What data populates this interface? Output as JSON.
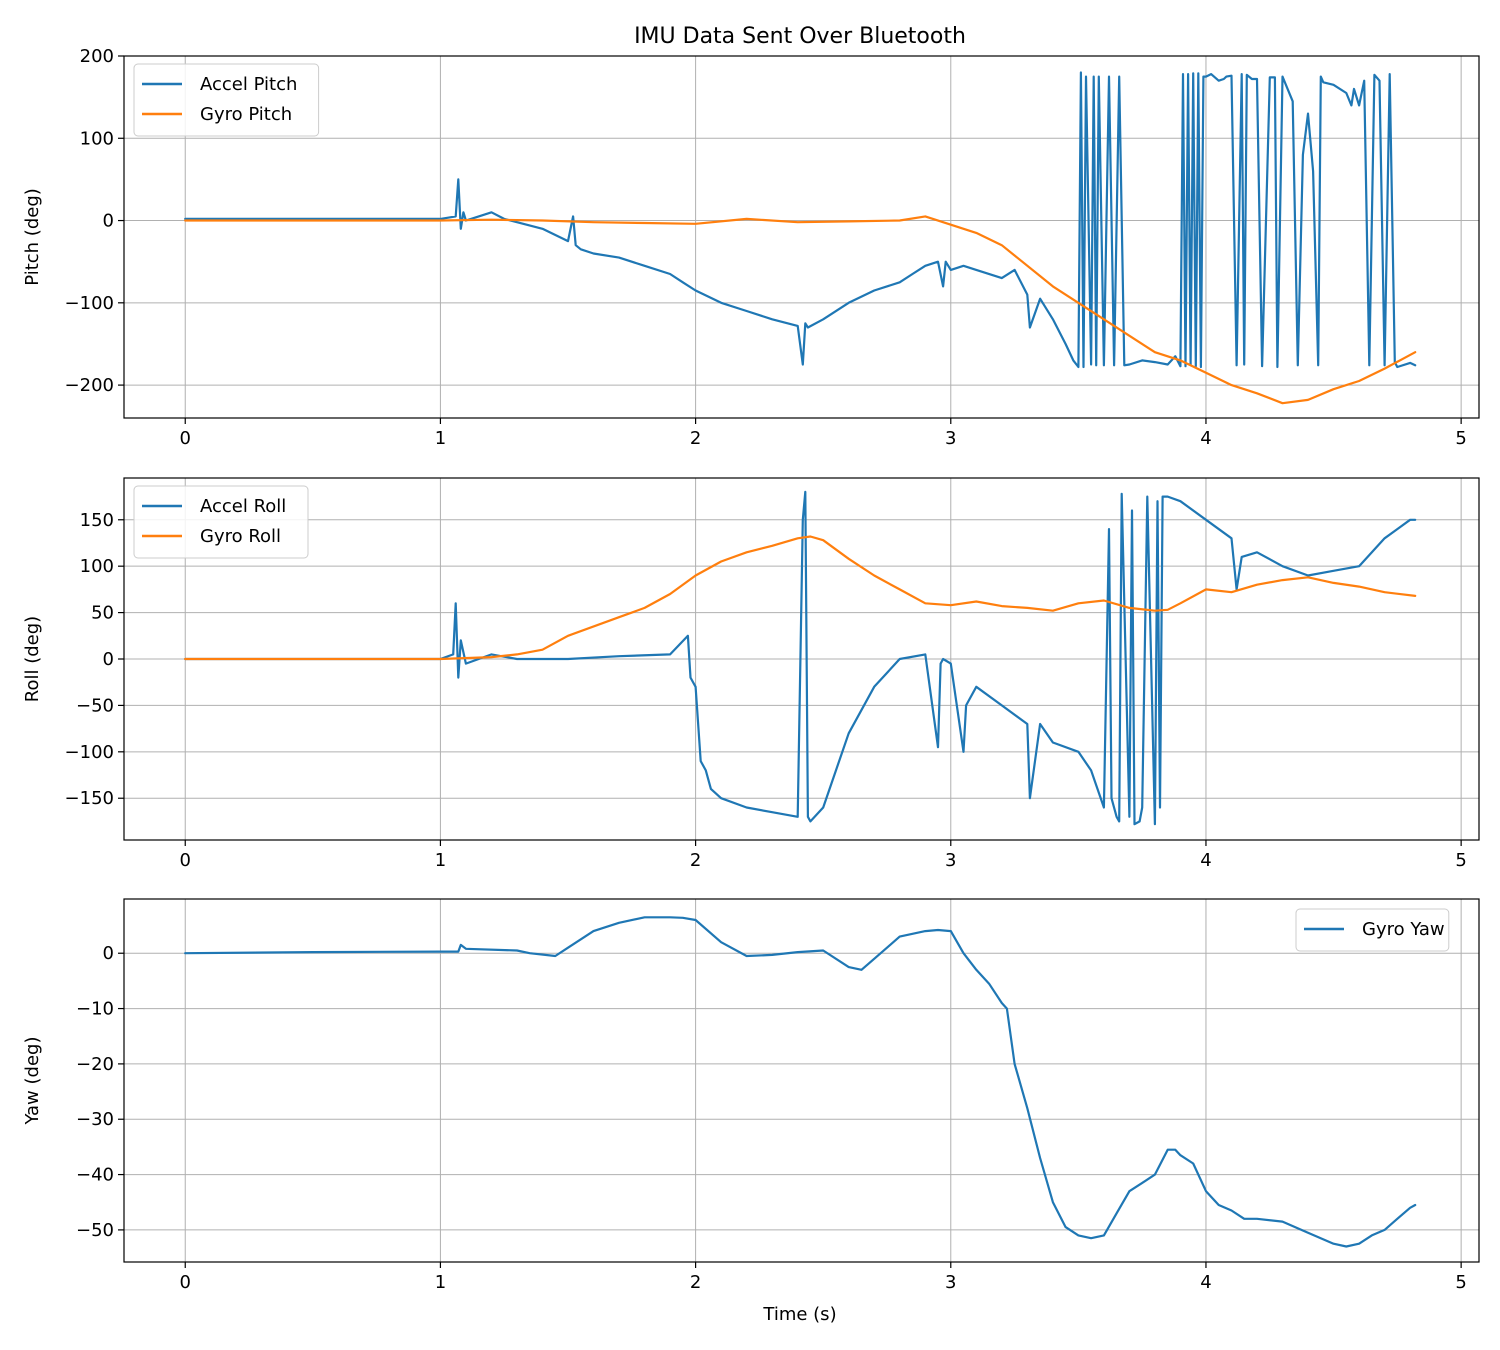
{
  "figure": {
    "title": "IMU Data Sent Over Bluetooth",
    "xlabel": "Time (s)"
  },
  "colors": {
    "accel": "#1f77b4",
    "gyro": "#ff7f0e",
    "grid": "#b0b0b0"
  },
  "chart_data": [
    {
      "type": "line",
      "title": "IMU Data Sent Over Bluetooth",
      "xlabel": "",
      "ylabel": "Pitch (deg)",
      "xlim": [
        -0.24,
        5.07
      ],
      "ylim": [
        -240,
        200
      ],
      "xticks": [
        0,
        1,
        2,
        3,
        4,
        5
      ],
      "xtick_labels": [
        "0",
        "1",
        "2",
        "3",
        "4",
        "5"
      ],
      "yticks": [
        200,
        100,
        0,
        -100,
        -200
      ],
      "ytick_labels": [
        "200",
        "100",
        "0",
        "−100",
        "−200"
      ],
      "legend": "top-left",
      "grid": true,
      "series": [
        {
          "name": "Accel Pitch",
          "color": "#1f77b4",
          "x": [
            0,
            0.3,
            0.6,
            0.9,
            1.0,
            1.06,
            1.07,
            1.08,
            1.09,
            1.1,
            1.15,
            1.2,
            1.25,
            1.3,
            1.4,
            1.5,
            1.52,
            1.53,
            1.55,
            1.6,
            1.7,
            1.8,
            1.9,
            1.95,
            2.0,
            2.1,
            2.2,
            2.3,
            2.4,
            2.42,
            2.43,
            2.44,
            2.5,
            2.6,
            2.7,
            2.8,
            2.85,
            2.9,
            2.95,
            2.97,
            2.98,
            3.0,
            3.05,
            3.1,
            3.2,
            3.25,
            3.3,
            3.31,
            3.35,
            3.4,
            3.45,
            3.48,
            3.5,
            3.51,
            3.52,
            3.53,
            3.55,
            3.56,
            3.57,
            3.58,
            3.6,
            3.62,
            3.64,
            3.66,
            3.68,
            3.7,
            3.75,
            3.8,
            3.85,
            3.88,
            3.9,
            3.91,
            3.92,
            3.93,
            3.94,
            3.95,
            3.96,
            3.97,
            3.98,
            3.99,
            4.0,
            4.02,
            4.05,
            4.07,
            4.08,
            4.1,
            4.12,
            4.14,
            4.15,
            4.16,
            4.18,
            4.2,
            4.22,
            4.25,
            4.27,
            4.28,
            4.3,
            4.32,
            4.34,
            4.36,
            4.38,
            4.4,
            4.42,
            4.44,
            4.45,
            4.46,
            4.5,
            4.55,
            4.57,
            4.58,
            4.6,
            4.62,
            4.64,
            4.66,
            4.68,
            4.7,
            4.72,
            4.74,
            4.75,
            4.8,
            4.82
          ],
          "y": [
            2,
            2,
            2,
            2,
            2,
            5,
            50,
            -10,
            10,
            0,
            5,
            10,
            2,
            -2,
            -10,
            -25,
            5,
            -30,
            -35,
            -40,
            -45,
            -55,
            -65,
            -75,
            -85,
            -100,
            -110,
            -120,
            -128,
            -175,
            -125,
            -130,
            -120,
            -100,
            -85,
            -75,
            -65,
            -55,
            -50,
            -80,
            -50,
            -60,
            -55,
            -60,
            -70,
            -60,
            -90,
            -130,
            -95,
            -120,
            -150,
            -170,
            -178,
            180,
            -178,
            175,
            -175,
            175,
            -176,
            175,
            -176,
            175,
            -176,
            175,
            -176,
            -175,
            -170,
            -172,
            -175,
            -165,
            -177,
            178,
            -177,
            178,
            -175,
            179,
            -177,
            179,
            -178,
            175,
            175,
            178,
            170,
            172,
            175,
            176,
            -176,
            178,
            -175,
            177,
            172,
            172,
            -177,
            174,
            174,
            -178,
            175,
            160,
            145,
            -176,
            80,
            130,
            60,
            -176,
            175,
            168,
            165,
            155,
            140,
            160,
            140,
            170,
            -176,
            177,
            170,
            -176,
            178,
            -172,
            -178,
            -173,
            -176
          ]
        },
        {
          "name": "Gyro Pitch",
          "color": "#ff7f0e",
          "x": [
            0,
            0.5,
            1.0,
            1.2,
            1.4,
            1.6,
            1.8,
            2.0,
            2.2,
            2.4,
            2.6,
            2.8,
            2.9,
            3.0,
            3.1,
            3.2,
            3.4,
            3.6,
            3.8,
            3.9,
            4.0,
            4.1,
            4.2,
            4.3,
            4.4,
            4.5,
            4.6,
            4.7,
            4.82
          ],
          "y": [
            0,
            0,
            0,
            1,
            0,
            -2,
            -3,
            -4,
            2,
            -2,
            -1,
            0,
            5,
            -5,
            -15,
            -30,
            -80,
            -120,
            -160,
            -170,
            -185,
            -200,
            -210,
            -222,
            -218,
            -205,
            -195,
            -180,
            -160
          ]
        }
      ]
    },
    {
      "type": "line",
      "title": "",
      "xlabel": "",
      "ylabel": "Roll (deg)",
      "xlim": [
        -0.24,
        5.07
      ],
      "ylim": [
        -195,
        195
      ],
      "xticks": [
        0,
        1,
        2,
        3,
        4,
        5
      ],
      "xtick_labels": [
        "0",
        "1",
        "2",
        "3",
        "4",
        "5"
      ],
      "yticks": [
        150,
        100,
        50,
        0,
        -50,
        -100,
        -150
      ],
      "ytick_labels": [
        "150",
        "100",
        "50",
        "0",
        "−50",
        "−100",
        "−150"
      ],
      "legend": "top-left",
      "grid": true,
      "series": [
        {
          "name": "Accel Roll",
          "color": "#1f77b4",
          "x": [
            0,
            0.5,
            1.0,
            1.05,
            1.06,
            1.07,
            1.08,
            1.1,
            1.2,
            1.3,
            1.5,
            1.7,
            1.9,
            1.97,
            1.98,
            2.0,
            2.02,
            2.04,
            2.06,
            2.1,
            2.2,
            2.3,
            2.4,
            2.42,
            2.43,
            2.44,
            2.45,
            2.5,
            2.6,
            2.7,
            2.8,
            2.9,
            2.95,
            2.96,
            2.97,
            3.0,
            3.05,
            3.06,
            3.1,
            3.2,
            3.3,
            3.31,
            3.35,
            3.4,
            3.5,
            3.55,
            3.6,
            3.62,
            3.63,
            3.65,
            3.66,
            3.67,
            3.7,
            3.71,
            3.72,
            3.74,
            3.75,
            3.77,
            3.8,
            3.81,
            3.82,
            3.83,
            3.85,
            3.9,
            4.0,
            4.1,
            4.12,
            4.14,
            4.2,
            4.3,
            4.4,
            4.5,
            4.6,
            4.7,
            4.75,
            4.8,
            4.82
          ],
          "y": [
            0,
            0,
            0,
            5,
            60,
            -20,
            20,
            -5,
            5,
            0,
            0,
            3,
            5,
            25,
            -20,
            -30,
            -110,
            -120,
            -140,
            -150,
            -160,
            -165,
            -170,
            150,
            180,
            -170,
            -175,
            -160,
            -80,
            -30,
            0,
            5,
            -95,
            -5,
            0,
            -5,
            -100,
            -50,
            -30,
            -50,
            -70,
            -150,
            -70,
            -90,
            -100,
            -120,
            -160,
            140,
            -150,
            -170,
            -175,
            178,
            -170,
            160,
            -178,
            -175,
            -160,
            175,
            -178,
            170,
            -160,
            175,
            175,
            170,
            150,
            130,
            75,
            110,
            115,
            100,
            90,
            95,
            100,
            130,
            140,
            150,
            150
          ]
        },
        {
          "name": "Gyro Roll",
          "color": "#ff7f0e",
          "x": [
            0,
            0.5,
            1.0,
            1.2,
            1.3,
            1.4,
            1.5,
            1.7,
            1.8,
            1.9,
            2.0,
            2.1,
            2.2,
            2.3,
            2.4,
            2.45,
            2.5,
            2.6,
            2.7,
            2.8,
            2.9,
            3.0,
            3.1,
            3.2,
            3.3,
            3.4,
            3.5,
            3.6,
            3.7,
            3.8,
            3.85,
            3.9,
            4.0,
            4.1,
            4.2,
            4.3,
            4.4,
            4.5,
            4.6,
            4.7,
            4.82
          ],
          "y": [
            0,
            0,
            0,
            2,
            5,
            10,
            25,
            45,
            55,
            70,
            90,
            105,
            115,
            122,
            130,
            132,
            128,
            108,
            90,
            75,
            60,
            58,
            62,
            57,
            55,
            52,
            60,
            63,
            55,
            52,
            53,
            60,
            75,
            72,
            80,
            85,
            88,
            82,
            78,
            72,
            68
          ]
        }
      ]
    },
    {
      "type": "line",
      "title": "",
      "xlabel": "Time (s)",
      "ylabel": "Yaw (deg)",
      "xlim": [
        -0.24,
        5.07
      ],
      "ylim": [
        -55.8,
        9.8
      ],
      "xticks": [
        0,
        1,
        2,
        3,
        4,
        5
      ],
      "xtick_labels": [
        "0",
        "1",
        "2",
        "3",
        "4",
        "5"
      ],
      "yticks": [
        0,
        -10,
        -20,
        -30,
        -40,
        -50
      ],
      "ytick_labels": [
        "0",
        "−10",
        "−20",
        "−30",
        "−40",
        "−50"
      ],
      "legend": "top-right",
      "grid": true,
      "series": [
        {
          "name": "Gyro Yaw",
          "color": "#1f77b4",
          "x": [
            0,
            0.5,
            1.0,
            1.07,
            1.08,
            1.1,
            1.3,
            1.35,
            1.45,
            1.5,
            1.6,
            1.7,
            1.8,
            1.9,
            1.95,
            2.0,
            2.1,
            2.2,
            2.3,
            2.4,
            2.5,
            2.6,
            2.65,
            2.7,
            2.8,
            2.9,
            2.95,
            3.0,
            3.05,
            3.1,
            3.15,
            3.2,
            3.22,
            3.25,
            3.3,
            3.35,
            3.4,
            3.45,
            3.5,
            3.55,
            3.6,
            3.65,
            3.7,
            3.75,
            3.8,
            3.85,
            3.88,
            3.9,
            3.95,
            4.0,
            4.05,
            4.1,
            4.15,
            4.2,
            4.3,
            4.4,
            4.5,
            4.55,
            4.6,
            4.65,
            4.7,
            4.75,
            4.8,
            4.82
          ],
          "y": [
            0,
            0.2,
            0.3,
            0.3,
            1.5,
            0.8,
            0.5,
            0,
            -0.5,
            1,
            4,
            5.5,
            6.5,
            6.5,
            6.4,
            6,
            2,
            -0.5,
            -0.3,
            0.2,
            0.5,
            -2.5,
            -3,
            -1,
            3,
            4,
            4.2,
            4,
            0,
            -3,
            -5.5,
            -9,
            -10,
            -20,
            -28,
            -37,
            -45,
            -49.5,
            -51,
            -51.5,
            -51,
            -47,
            -43,
            -41.5,
            -40,
            -35.5,
            -35.5,
            -36.5,
            -38,
            -43,
            -45.5,
            -46.5,
            -48,
            -48,
            -48.5,
            -50.5,
            -52.5,
            -53,
            -52.5,
            -51,
            -50,
            -48,
            -46,
            -45.5
          ]
        }
      ]
    }
  ]
}
